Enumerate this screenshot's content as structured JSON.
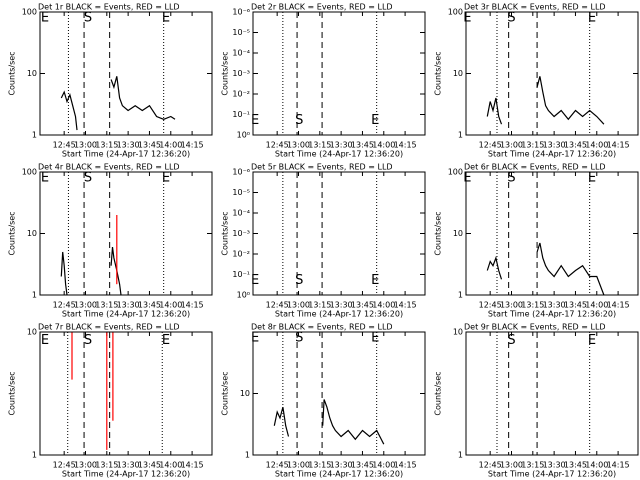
{
  "chart_data": [
    {
      "type": "line",
      "title": "Det 1r BLACK = Events, RED = LLD",
      "xlabel": "Start Time (24-Apr-17 12:36:20)",
      "ylabel": "Counts/sec",
      "log_y": true,
      "xlim": [
        748,
        869
      ],
      "xticks": [
        {
          "value": 765,
          "label": "12:45"
        },
        {
          "value": 780,
          "label": "13:00"
        },
        {
          "value": 795,
          "label": "13:15"
        },
        {
          "value": 810,
          "label": "13:30"
        },
        {
          "value": 825,
          "label": "13:45"
        },
        {
          "value": 840,
          "label": "14:00"
        },
        {
          "value": 855,
          "label": "14:15"
        }
      ],
      "ylim": [
        1,
        100
      ],
      "yticks": [
        1,
        10,
        100
      ],
      "vlines": [
        {
          "x": 768,
          "style": "dotted"
        },
        {
          "x": 779,
          "style": "dashed"
        },
        {
          "x": 797,
          "style": "dashed"
        },
        {
          "x": 835,
          "style": "dotted"
        }
      ],
      "annotations": [
        {
          "text": "E",
          "x": 751.5,
          "y": 80
        },
        {
          "text": "S",
          "x": 781.8,
          "y": 80
        },
        {
          "text": "E",
          "x": 836.6,
          "y": 80
        }
      ],
      "series": [
        {
          "color": "#000000",
          "x": [
            763,
            765,
            767,
            769,
            771,
            773,
            774,
            790,
            798,
            800,
            802,
            804,
            806,
            810,
            815,
            820,
            825,
            830,
            835,
            840,
            843
          ],
          "values": [
            4,
            5,
            3.5,
            4.5,
            3,
            2,
            1.2,
            null,
            8,
            6,
            9,
            4,
            3,
            2.5,
            3,
            2.5,
            3,
            2,
            1.8,
            2,
            1.8
          ]
        }
      ]
    },
    {
      "type": "line",
      "title": "Det 2r BLACK = Events, RED = LLD",
      "xlabel": "Start Time (24-Apr-17 12:36:20)",
      "ylabel": "Counts/sec",
      "log_y": true,
      "xlim": [
        748,
        869
      ],
      "xticks": [
        {
          "value": 765,
          "label": "12:45"
        },
        {
          "value": 780,
          "label": "13:00"
        },
        {
          "value": 795,
          "label": "13:15"
        },
        {
          "value": 810,
          "label": "13:30"
        },
        {
          "value": 825,
          "label": "13:45"
        },
        {
          "value": 840,
          "label": "14:00"
        },
        {
          "value": 855,
          "label": "14:15"
        }
      ],
      "ylim": [
        1,
        1e-06
      ],
      "yticks": [
        {
          "value": 1,
          "label": "10⁰"
        },
        {
          "value": 0.1,
          "label": "10⁻¹"
        },
        {
          "value": 0.01,
          "label": "10⁻²"
        },
        {
          "value": 0.001,
          "label": "10⁻³"
        },
        {
          "value": 0.0001,
          "label": "10⁻⁴"
        },
        {
          "value": 1e-05,
          "label": "10⁻⁵"
        },
        {
          "value": 1e-06,
          "label": "10⁻⁶"
        }
      ],
      "vlines": [
        {
          "x": 769,
          "style": "dotted"
        },
        {
          "x": 779,
          "style": "dashed"
        },
        {
          "x": 796.6,
          "style": "dashed"
        },
        {
          "x": 835,
          "style": "dotted"
        }
      ],
      "annotations": [
        {
          "text": "E",
          "x": 749.5,
          "y": 0.2
        },
        {
          "text": "S",
          "x": 780.5,
          "y": 0.2
        },
        {
          "text": "E",
          "x": 834,
          "y": 0.2
        }
      ],
      "series": []
    },
    {
      "type": "line",
      "title": "Det 3r BLACK = Events, RED = LLD",
      "xlabel": "Start Time (24-Apr-17 12:36:20)",
      "ylabel": "Counts/sec",
      "log_y": true,
      "xlim": [
        748,
        869
      ],
      "xticks": [
        {
          "value": 765,
          "label": "12:45"
        },
        {
          "value": 780,
          "label": "13:00"
        },
        {
          "value": 795,
          "label": "13:15"
        },
        {
          "value": 810,
          "label": "13:30"
        },
        {
          "value": 825,
          "label": "13:45"
        },
        {
          "value": 840,
          "label": "14:00"
        },
        {
          "value": 855,
          "label": "14:15"
        }
      ],
      "ylim": [
        1,
        100
      ],
      "yticks": [
        1,
        10,
        100
      ],
      "vlines": [
        {
          "x": 769.8,
          "style": "dotted"
        },
        {
          "x": 778,
          "style": "dashed"
        },
        {
          "x": 798,
          "style": "dashed"
        },
        {
          "x": 835,
          "style": "dotted"
        }
      ],
      "annotations": [
        {
          "text": "E",
          "x": 749,
          "y": 80
        },
        {
          "text": "S",
          "x": 780,
          "y": 80
        },
        {
          "text": "E",
          "x": 836.6,
          "y": 80
        }
      ],
      "series": [
        {
          "color": "#000000",
          "x": [
            763,
            765,
            767,
            769,
            771,
            773,
            790,
            798,
            800,
            802,
            804,
            806,
            810,
            815,
            820,
            825,
            830,
            835,
            840,
            845
          ],
          "values": [
            2,
            3.5,
            2.5,
            4,
            2,
            1.5,
            null,
            6,
            9,
            5,
            3,
            2.5,
            2,
            2.5,
            1.8,
            2.5,
            2,
            2.5,
            2,
            1.5
          ]
        }
      ]
    },
    {
      "type": "line",
      "title": "Det 4r BLACK = Events, RED = LLD",
      "xlabel": "Start Time (24-Apr-17 12:36:20)",
      "ylabel": "Counts/sec",
      "log_y": true,
      "xlim": [
        748,
        869
      ],
      "xticks": [
        {
          "value": 765,
          "label": "12:45"
        },
        {
          "value": 780,
          "label": "13:00"
        },
        {
          "value": 795,
          "label": "13:15"
        },
        {
          "value": 810,
          "label": "13:30"
        },
        {
          "value": 825,
          "label": "13:45"
        },
        {
          "value": 840,
          "label": "14:00"
        },
        {
          "value": 855,
          "label": "14:15"
        }
      ],
      "ylim": [
        1,
        100
      ],
      "yticks": [
        1,
        10,
        100
      ],
      "vlines": [
        {
          "x": 768,
          "style": "dotted"
        },
        {
          "x": 779,
          "style": "dashed"
        },
        {
          "x": 797,
          "style": "dashed"
        },
        {
          "x": 835,
          "style": "dotted"
        }
      ],
      "annotations": [
        {
          "text": "E",
          "x": 751.5,
          "y": 80
        },
        {
          "text": "S",
          "x": 781.8,
          "y": 80
        },
        {
          "text": "E",
          "x": 836.6,
          "y": 80
        }
      ],
      "series": [
        {
          "color": "#000000",
          "x": [
            763,
            764,
            765,
            766,
            767,
            790,
            798,
            799,
            800,
            802,
            804,
            805
          ],
          "values": [
            2,
            5,
            3,
            1.5,
            1,
            null,
            3,
            6,
            4,
            2.5,
            1.5,
            1
          ]
        },
        {
          "color": "#ff0000",
          "x": [
            802,
            802
          ],
          "values": [
            20,
            1.5
          ]
        }
      ]
    },
    {
      "type": "line",
      "title": "Det 5r BLACK = Events, RED = LLD",
      "xlabel": "Start Time (24-Apr-17 12:36:20)",
      "ylabel": "Counts/sec",
      "log_y": true,
      "xlim": [
        748,
        869
      ],
      "xticks": [
        {
          "value": 765,
          "label": "12:45"
        },
        {
          "value": 780,
          "label": "13:00"
        },
        {
          "value": 795,
          "label": "13:15"
        },
        {
          "value": 810,
          "label": "13:30"
        },
        {
          "value": 825,
          "label": "13:45"
        },
        {
          "value": 840,
          "label": "14:00"
        },
        {
          "value": 855,
          "label": "14:15"
        }
      ],
      "ylim": [
        1,
        1e-06
      ],
      "yticks": [
        {
          "value": 1,
          "label": "10⁰"
        },
        {
          "value": 0.1,
          "label": "10⁻¹"
        },
        {
          "value": 0.01,
          "label": "10⁻²"
        },
        {
          "value": 0.001,
          "label": "10⁻³"
        },
        {
          "value": 0.0001,
          "label": "10⁻⁴"
        },
        {
          "value": 1e-05,
          "label": "10⁻⁵"
        },
        {
          "value": 1e-06,
          "label": "10⁻⁶"
        }
      ],
      "vlines": [
        {
          "x": 769,
          "style": "dotted"
        },
        {
          "x": 779,
          "style": "dashed"
        },
        {
          "x": 796.6,
          "style": "dashed"
        },
        {
          "x": 835,
          "style": "dotted"
        }
      ],
      "annotations": [
        {
          "text": "E",
          "x": 749.5,
          "y": 0.2
        },
        {
          "text": "S",
          "x": 780.5,
          "y": 0.2
        },
        {
          "text": "E",
          "x": 834,
          "y": 0.2
        }
      ],
      "series": []
    },
    {
      "type": "line",
      "title": "Det 6r BLACK = Events, RED = LLD",
      "xlabel": "Start Time (24-Apr-17 12:36:20)",
      "ylabel": "Counts/sec",
      "log_y": true,
      "xlim": [
        748,
        869
      ],
      "xticks": [
        {
          "value": 765,
          "label": "12:45"
        },
        {
          "value": 780,
          "label": "13:00"
        },
        {
          "value": 795,
          "label": "13:15"
        },
        {
          "value": 810,
          "label": "13:30"
        },
        {
          "value": 825,
          "label": "13:45"
        },
        {
          "value": 840,
          "label": "14:00"
        },
        {
          "value": 855,
          "label": "14:15"
        }
      ],
      "ylim": [
        1,
        100
      ],
      "yticks": [
        1,
        10,
        100
      ],
      "vlines": [
        {
          "x": 769.8,
          "style": "dotted"
        },
        {
          "x": 778,
          "style": "dashed"
        },
        {
          "x": 798,
          "style": "dashed"
        },
        {
          "x": 835,
          "style": "dotted"
        }
      ],
      "annotations": [
        {
          "text": "E",
          "x": 749,
          "y": 80
        },
        {
          "text": "S",
          "x": 780,
          "y": 80
        },
        {
          "text": "E",
          "x": 836.6,
          "y": 80
        }
      ],
      "series": [
        {
          "color": "#000000",
          "x": [
            763,
            765,
            767,
            769,
            771,
            773,
            790,
            798,
            800,
            802,
            804,
            806,
            810,
            815,
            820,
            825,
            830,
            835,
            840,
            845
          ],
          "values": [
            2.5,
            3.5,
            3,
            4,
            2.5,
            1.8,
            null,
            5,
            7,
            4,
            3,
            2.5,
            2,
            3,
            2,
            2.5,
            3,
            2,
            2,
            1
          ]
        }
      ]
    },
    {
      "type": "line",
      "title": "Det 7r BLACK = Events, RED = LLD",
      "xlabel": "Start Time (24-Apr-17 12:36:20)",
      "ylabel": "Counts/sec",
      "log_y": true,
      "xlim": [
        748,
        869
      ],
      "xticks": [
        {
          "value": 765,
          "label": "12:45"
        },
        {
          "value": 780,
          "label": "13:00"
        },
        {
          "value": 795,
          "label": "13:15"
        },
        {
          "value": 810,
          "label": "13:30"
        },
        {
          "value": 825,
          "label": "13:45"
        },
        {
          "value": 840,
          "label": "14:00"
        },
        {
          "value": 855,
          "label": "14:15"
        }
      ],
      "ylim": [
        1,
        10
      ],
      "yticks": [
        1,
        10
      ],
      "vlines": [
        {
          "x": 767.5,
          "style": "dotted"
        },
        {
          "x": 779,
          "style": "dashed"
        },
        {
          "x": 797,
          "style": "dashed"
        },
        {
          "x": 834,
          "style": "dotted"
        }
      ],
      "annotations": [
        {
          "text": "E",
          "x": 751.5,
          "y": 8.5
        },
        {
          "text": "S",
          "x": 781.8,
          "y": 8.5
        },
        {
          "text": "E",
          "x": 836.6,
          "y": 8.5
        }
      ],
      "series": [
        {
          "color": "#ff0000",
          "x": [
            770.5,
            770.5
          ],
          "values": [
            9.9,
            4.1
          ]
        },
        {
          "color": "#ff0000",
          "x": [
            795,
            795
          ],
          "values": [
            9.9,
            1.1
          ]
        },
        {
          "color": "#ff0000",
          "x": [
            799.3,
            799.3
          ],
          "values": [
            9.9,
            1.9
          ]
        }
      ]
    },
    {
      "type": "line",
      "title": "Det 8r BLACK = Events, RED = LLD",
      "xlabel": "Start Time (24-Apr-17 12:36:20)",
      "ylabel": "Counts/sec",
      "log_y": true,
      "xlim": [
        748,
        869
      ],
      "xticks": [
        {
          "value": 765,
          "label": "12:45"
        },
        {
          "value": 780,
          "label": "13:00"
        },
        {
          "value": 795,
          "label": "13:15"
        },
        {
          "value": 810,
          "label": "13:30"
        },
        {
          "value": 825,
          "label": "13:45"
        },
        {
          "value": 840,
          "label": "14:00"
        },
        {
          "value": 855,
          "label": "14:15"
        }
      ],
      "ylim": [
        1,
        100
      ],
      "yticks": [
        1,
        10
      ],
      "vlines": [
        {
          "x": 769,
          "style": "dotted"
        },
        {
          "x": 779,
          "style": "dashed"
        },
        {
          "x": 796.6,
          "style": "dashed"
        },
        {
          "x": 835,
          "style": "dotted"
        }
      ],
      "annotations": [
        {
          "text": "E",
          "x": 749.5,
          "y": 80
        },
        {
          "text": "S",
          "x": 780.5,
          "y": 80
        },
        {
          "text": "E",
          "x": 834,
          "y": 80
        }
      ],
      "series": [
        {
          "color": "#000000",
          "x": [
            763,
            765,
            767,
            769,
            771,
            773,
            790,
            797,
            798,
            800,
            802,
            804,
            806,
            810,
            815,
            820,
            825,
            830,
            835,
            840
          ],
          "values": [
            3,
            5,
            4,
            6,
            3,
            2,
            null,
            3,
            8,
            6,
            4,
            3,
            2.5,
            2,
            2.5,
            1.8,
            2.5,
            2,
            2.5,
            1.5
          ]
        }
      ]
    },
    {
      "type": "line",
      "title": "Det 9r BLACK = Events, RED = LLD",
      "xlabel": "Start Time (24-Apr-17 12:36:20)",
      "ylabel": "Counts/sec",
      "log_y": true,
      "xlim": [
        748,
        869
      ],
      "xticks": [
        {
          "value": 765,
          "label": "12:45"
        },
        {
          "value": 780,
          "label": "13:00"
        },
        {
          "value": 795,
          "label": "13:15"
        },
        {
          "value": 810,
          "label": "13:30"
        },
        {
          "value": 825,
          "label": "13:45"
        },
        {
          "value": 840,
          "label": "14:00"
        },
        {
          "value": 855,
          "label": "14:15"
        }
      ],
      "ylim": [
        1,
        10
      ],
      "yticks": [
        1,
        10
      ],
      "vlines": [
        {
          "x": 769.8,
          "style": "dotted"
        },
        {
          "x": 778,
          "style": "dashed"
        },
        {
          "x": 798,
          "style": "dashed"
        },
        {
          "x": 835,
          "style": "dotted"
        }
      ],
      "annotations": [
        {
          "text": "S",
          "x": 780,
          "y": 8.5
        },
        {
          "text": "E",
          "x": 836.6,
          "y": 8.5
        }
      ],
      "series": []
    }
  ]
}
